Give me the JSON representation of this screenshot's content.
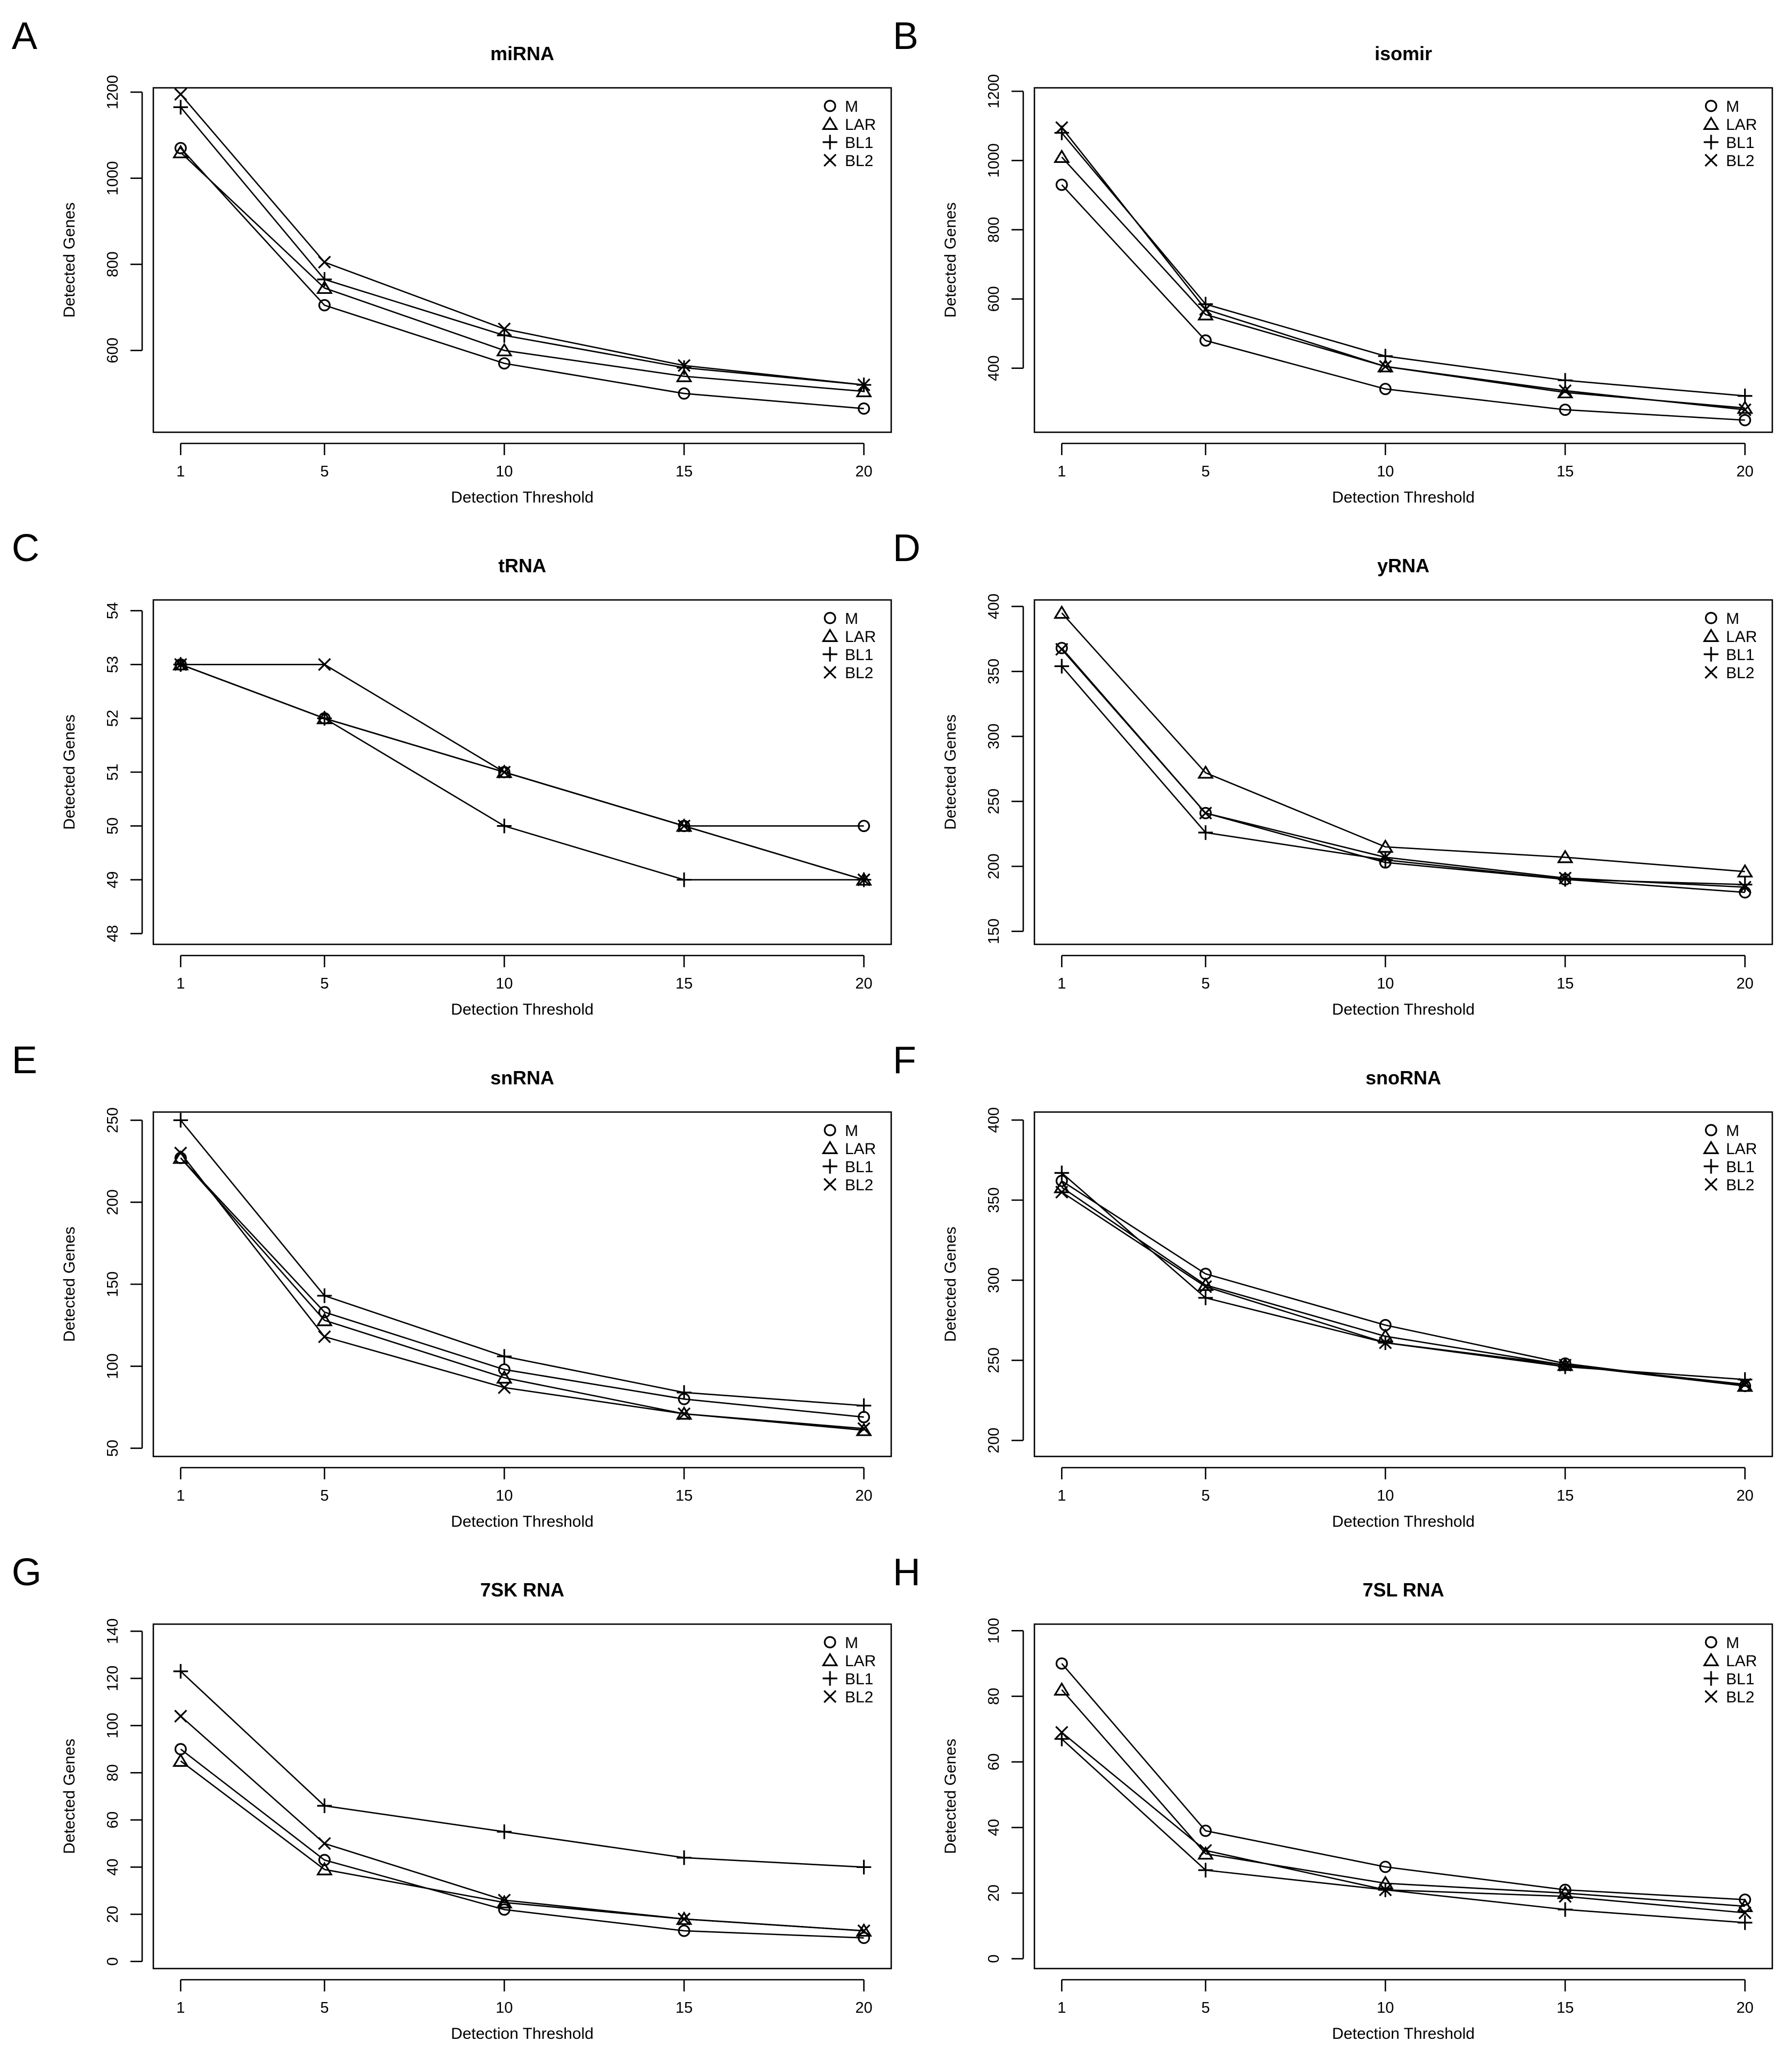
{
  "figure": {
    "legend_position": "top-right",
    "series_markers": {
      "M": "circle",
      "LAR": "triangle",
      "BL1": "plus",
      "BL2": "cross"
    },
    "colors": {
      "ink": "#000000",
      "background": "#ffffff"
    }
  },
  "chart_data": [
    {
      "panel": "A",
      "type": "line",
      "title": "miRNA",
      "xlabel": "Detection Threshold",
      "ylabel": "Detected Genes",
      "x": [
        1,
        5,
        10,
        15,
        20
      ],
      "xticks": [
        "1",
        "5",
        "10",
        "15",
        "20"
      ],
      "ylim": [
        410,
        1210
      ],
      "yticks": [
        600,
        800,
        1000,
        1200
      ],
      "series": [
        {
          "name": "M",
          "values": [
            1070,
            705,
            570,
            500,
            465
          ]
        },
        {
          "name": "LAR",
          "values": [
            1060,
            745,
            600,
            540,
            505
          ]
        },
        {
          "name": "BL1",
          "values": [
            1165,
            765,
            635,
            560,
            520
          ]
        },
        {
          "name": "BL2",
          "values": [
            1195,
            805,
            650,
            565,
            520
          ]
        }
      ]
    },
    {
      "panel": "B",
      "type": "line",
      "title": "isomir",
      "xlabel": "Detection Threshold",
      "ylabel": "Detected Genes",
      "x": [
        1,
        5,
        10,
        15,
        20
      ],
      "xticks": [
        "1",
        "5",
        "10",
        "15",
        "20"
      ],
      "ylim": [
        215,
        1210
      ],
      "yticks": [
        400,
        600,
        800,
        1000,
        1200
      ],
      "series": [
        {
          "name": "M",
          "values": [
            930,
            480,
            340,
            280,
            250
          ]
        },
        {
          "name": "LAR",
          "values": [
            1010,
            555,
            405,
            330,
            285
          ]
        },
        {
          "name": "BL1",
          "values": [
            1080,
            585,
            435,
            365,
            320
          ]
        },
        {
          "name": "BL2",
          "values": [
            1095,
            570,
            405,
            335,
            280
          ]
        }
      ]
    },
    {
      "panel": "C",
      "type": "line",
      "title": "tRNA",
      "xlabel": "Detection Threshold",
      "ylabel": "Detected Genes",
      "x": [
        1,
        5,
        10,
        15,
        20
      ],
      "xticks": [
        "1",
        "5",
        "10",
        "15",
        "20"
      ],
      "ylim": [
        47.8,
        54.2
      ],
      "yticks": [
        48,
        49,
        50,
        51,
        52,
        53,
        54
      ],
      "series": [
        {
          "name": "M",
          "values": [
            53,
            52,
            51,
            50,
            50
          ]
        },
        {
          "name": "LAR",
          "values": [
            53,
            52,
            51,
            50,
            49
          ]
        },
        {
          "name": "BL1",
          "values": [
            53,
            52,
            50,
            49,
            49
          ]
        },
        {
          "name": "BL2",
          "values": [
            53,
            53,
            51,
            50,
            49
          ]
        }
      ]
    },
    {
      "panel": "D",
      "type": "line",
      "title": "yRNA",
      "xlabel": "Detection Threshold",
      "ylabel": "Detected Genes",
      "x": [
        1,
        5,
        10,
        15,
        20
      ],
      "xticks": [
        "1",
        "5",
        "10",
        "15",
        "20"
      ],
      "ylim": [
        140,
        405
      ],
      "yticks": [
        150,
        200,
        250,
        300,
        350,
        400
      ],
      "series": [
        {
          "name": "M",
          "values": [
            368,
            241,
            203,
            190,
            180
          ]
        },
        {
          "name": "LAR",
          "values": [
            395,
            272,
            215,
            207,
            196
          ]
        },
        {
          "name": "BL1",
          "values": [
            354,
            226,
            205,
            190,
            186
          ]
        },
        {
          "name": "BL2",
          "values": [
            367,
            241,
            207,
            191,
            184
          ]
        }
      ]
    },
    {
      "panel": "E",
      "type": "line",
      "title": "snRNA",
      "xlabel": "Detection Threshold",
      "ylabel": "Detected Genes",
      "x": [
        1,
        5,
        10,
        15,
        20
      ],
      "xticks": [
        "1",
        "5",
        "10",
        "15",
        "20"
      ],
      "ylim": [
        45,
        255
      ],
      "yticks": [
        50,
        100,
        150,
        200,
        250
      ],
      "series": [
        {
          "name": "M",
          "values": [
            227,
            133,
            98,
            80,
            69
          ]
        },
        {
          "name": "LAR",
          "values": [
            227,
            128,
            93,
            71,
            61
          ]
        },
        {
          "name": "BL1",
          "values": [
            250,
            143,
            106,
            84,
            76
          ]
        },
        {
          "name": "BL2",
          "values": [
            230,
            118,
            87,
            71,
            62
          ]
        }
      ]
    },
    {
      "panel": "F",
      "type": "line",
      "title": "snoRNA",
      "xlabel": "Detection Threshold",
      "ylabel": "Detected Genes",
      "x": [
        1,
        5,
        10,
        15,
        20
      ],
      "xticks": [
        "1",
        "5",
        "10",
        "15",
        "20"
      ],
      "ylim": [
        190,
        405
      ],
      "yticks": [
        200,
        250,
        300,
        350,
        400
      ],
      "series": [
        {
          "name": "M",
          "values": [
            362,
            304,
            272,
            248,
            234
          ]
        },
        {
          "name": "LAR",
          "values": [
            358,
            297,
            265,
            247,
            234
          ]
        },
        {
          "name": "BL1",
          "values": [
            367,
            289,
            261,
            246,
            238
          ]
        },
        {
          "name": "BL2",
          "values": [
            355,
            296,
            261,
            247,
            235
          ]
        }
      ]
    },
    {
      "panel": "G",
      "type": "line",
      "title": "7SK RNA",
      "xlabel": "Detection Threshold",
      "ylabel": "Detected Genes",
      "x": [
        1,
        5,
        10,
        15,
        20
      ],
      "xticks": [
        "1",
        "5",
        "10",
        "15",
        "20"
      ],
      "ylim": [
        -3,
        143
      ],
      "yticks": [
        0,
        20,
        40,
        60,
        80,
        100,
        120,
        140
      ],
      "series": [
        {
          "name": "M",
          "values": [
            90,
            43,
            22,
            13,
            10
          ]
        },
        {
          "name": "LAR",
          "values": [
            85,
            39,
            25,
            18,
            13
          ]
        },
        {
          "name": "BL1",
          "values": [
            123,
            66,
            55,
            44,
            40
          ]
        },
        {
          "name": "BL2",
          "values": [
            104,
            50,
            26,
            18,
            13
          ]
        }
      ]
    },
    {
      "panel": "H",
      "type": "line",
      "title": "7SL RNA",
      "xlabel": "Detection Threshold",
      "ylabel": "Detected Genes",
      "x": [
        1,
        5,
        10,
        15,
        20
      ],
      "xticks": [
        "1",
        "5",
        "10",
        "15",
        "20"
      ],
      "ylim": [
        -3,
        102
      ],
      "yticks": [
        0,
        20,
        40,
        60,
        80,
        100
      ],
      "series": [
        {
          "name": "M",
          "values": [
            90,
            39,
            28,
            21,
            18
          ]
        },
        {
          "name": "LAR",
          "values": [
            82,
            32,
            23,
            20,
            16
          ]
        },
        {
          "name": "BL1",
          "values": [
            67,
            27,
            21,
            15,
            11
          ]
        },
        {
          "name": "BL2",
          "values": [
            69,
            33,
            21,
            19,
            14
          ]
        }
      ]
    }
  ]
}
